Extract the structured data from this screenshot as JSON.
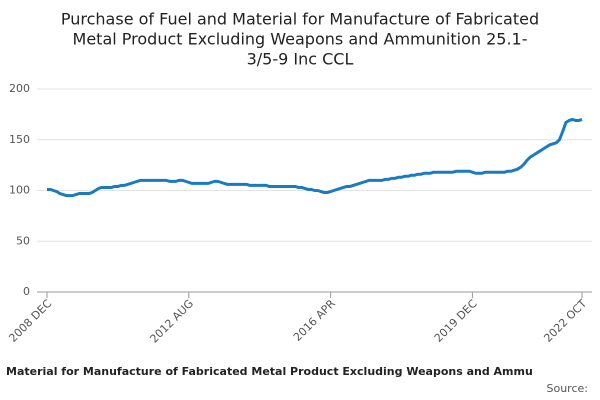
{
  "chart_data": {
    "type": "line",
    "title": [
      "Purchase of Fuel and Material for Manufacture of Fabricated",
      "Metal Product Excluding Weapons and Ammunition 25.1-",
      "3/5-9 Inc CCL"
    ],
    "footer": "Material for Manufacture of Fabricated Metal Product Excluding Weapons and Ammu",
    "source": "Source:",
    "categories": [
      "2008 DEC",
      null,
      null,
      null,
      null,
      null,
      null,
      null,
      null,
      null,
      null,
      null,
      null,
      null,
      null,
      null,
      null,
      null,
      null,
      null,
      null,
      null,
      null,
      null,
      null,
      null,
      null,
      null,
      null,
      null,
      null,
      null,
      null,
      null,
      null,
      null,
      null,
      null,
      null,
      null,
      null,
      null,
      null,
      null,
      "2012 AUG",
      null,
      null,
      null,
      null,
      null,
      null,
      null,
      null,
      null,
      null,
      null,
      null,
      null,
      null,
      null,
      null,
      null,
      null,
      null,
      null,
      null,
      null,
      null,
      null,
      null,
      null,
      null,
      null,
      null,
      null,
      null,
      null,
      null,
      null,
      null,
      null,
      null,
      null,
      null,
      null,
      null,
      null,
      null,
      "2016 APR",
      null,
      null,
      null,
      null,
      null,
      null,
      null,
      null,
      null,
      null,
      null,
      null,
      null,
      null,
      null,
      null,
      null,
      null,
      null,
      null,
      null,
      null,
      null,
      null,
      null,
      null,
      null,
      null,
      null,
      null,
      null,
      null,
      null,
      null,
      null,
      null,
      null,
      null,
      null,
      null,
      null,
      null,
      null,
      "2019 DEC",
      null,
      null,
      null,
      null,
      null,
      null,
      null,
      null,
      null,
      null,
      null,
      null,
      null,
      null,
      null,
      null,
      null,
      null,
      null,
      null,
      null,
      null,
      null,
      null,
      null,
      null,
      null,
      null,
      null,
      null,
      null,
      null,
      null,
      "2022 OCT"
    ],
    "series": [
      {
        "color": "#1a7bbf",
        "values": [
          101,
          101,
          100,
          99,
          97,
          96,
          95,
          95,
          95,
          96,
          97,
          97,
          97,
          97,
          98,
          100,
          102,
          103,
          103,
          103,
          103,
          104,
          104,
          105,
          105,
          106,
          107,
          108,
          109,
          110,
          110,
          110,
          110,
          110,
          110,
          110,
          110,
          110,
          109,
          109,
          109,
          110,
          110,
          109,
          108,
          107,
          107,
          107,
          107,
          107,
          107,
          108,
          109,
          109,
          108,
          107,
          106,
          106,
          106,
          106,
          106,
          106,
          106,
          105,
          105,
          105,
          105,
          105,
          105,
          104,
          104,
          104,
          104,
          104,
          104,
          104,
          104,
          104,
          103,
          103,
          102,
          101,
          101,
          100,
          100,
          99,
          98,
          98,
          99,
          100,
          101,
          102,
          103,
          104,
          104,
          105,
          106,
          107,
          108,
          109,
          110,
          110,
          110,
          110,
          110,
          111,
          111,
          112,
          112,
          113,
          113,
          114,
          114,
          115,
          115,
          116,
          116,
          117,
          117,
          117,
          118,
          118,
          118,
          118,
          118,
          118,
          118,
          119,
          119,
          119,
          119,
          119,
          118,
          117,
          117,
          117,
          118,
          118,
          118,
          118,
          118,
          118,
          118,
          119,
          119,
          120,
          121,
          123,
          126,
          130,
          133,
          135,
          137,
          139,
          141,
          143,
          145,
          146,
          147,
          150,
          158,
          167,
          169,
          170,
          169,
          169,
          170
        ]
      }
    ],
    "ylim": [
      0,
      200
    ],
    "yticks": [
      0,
      50,
      100,
      150,
      200
    ],
    "grid": true
  }
}
